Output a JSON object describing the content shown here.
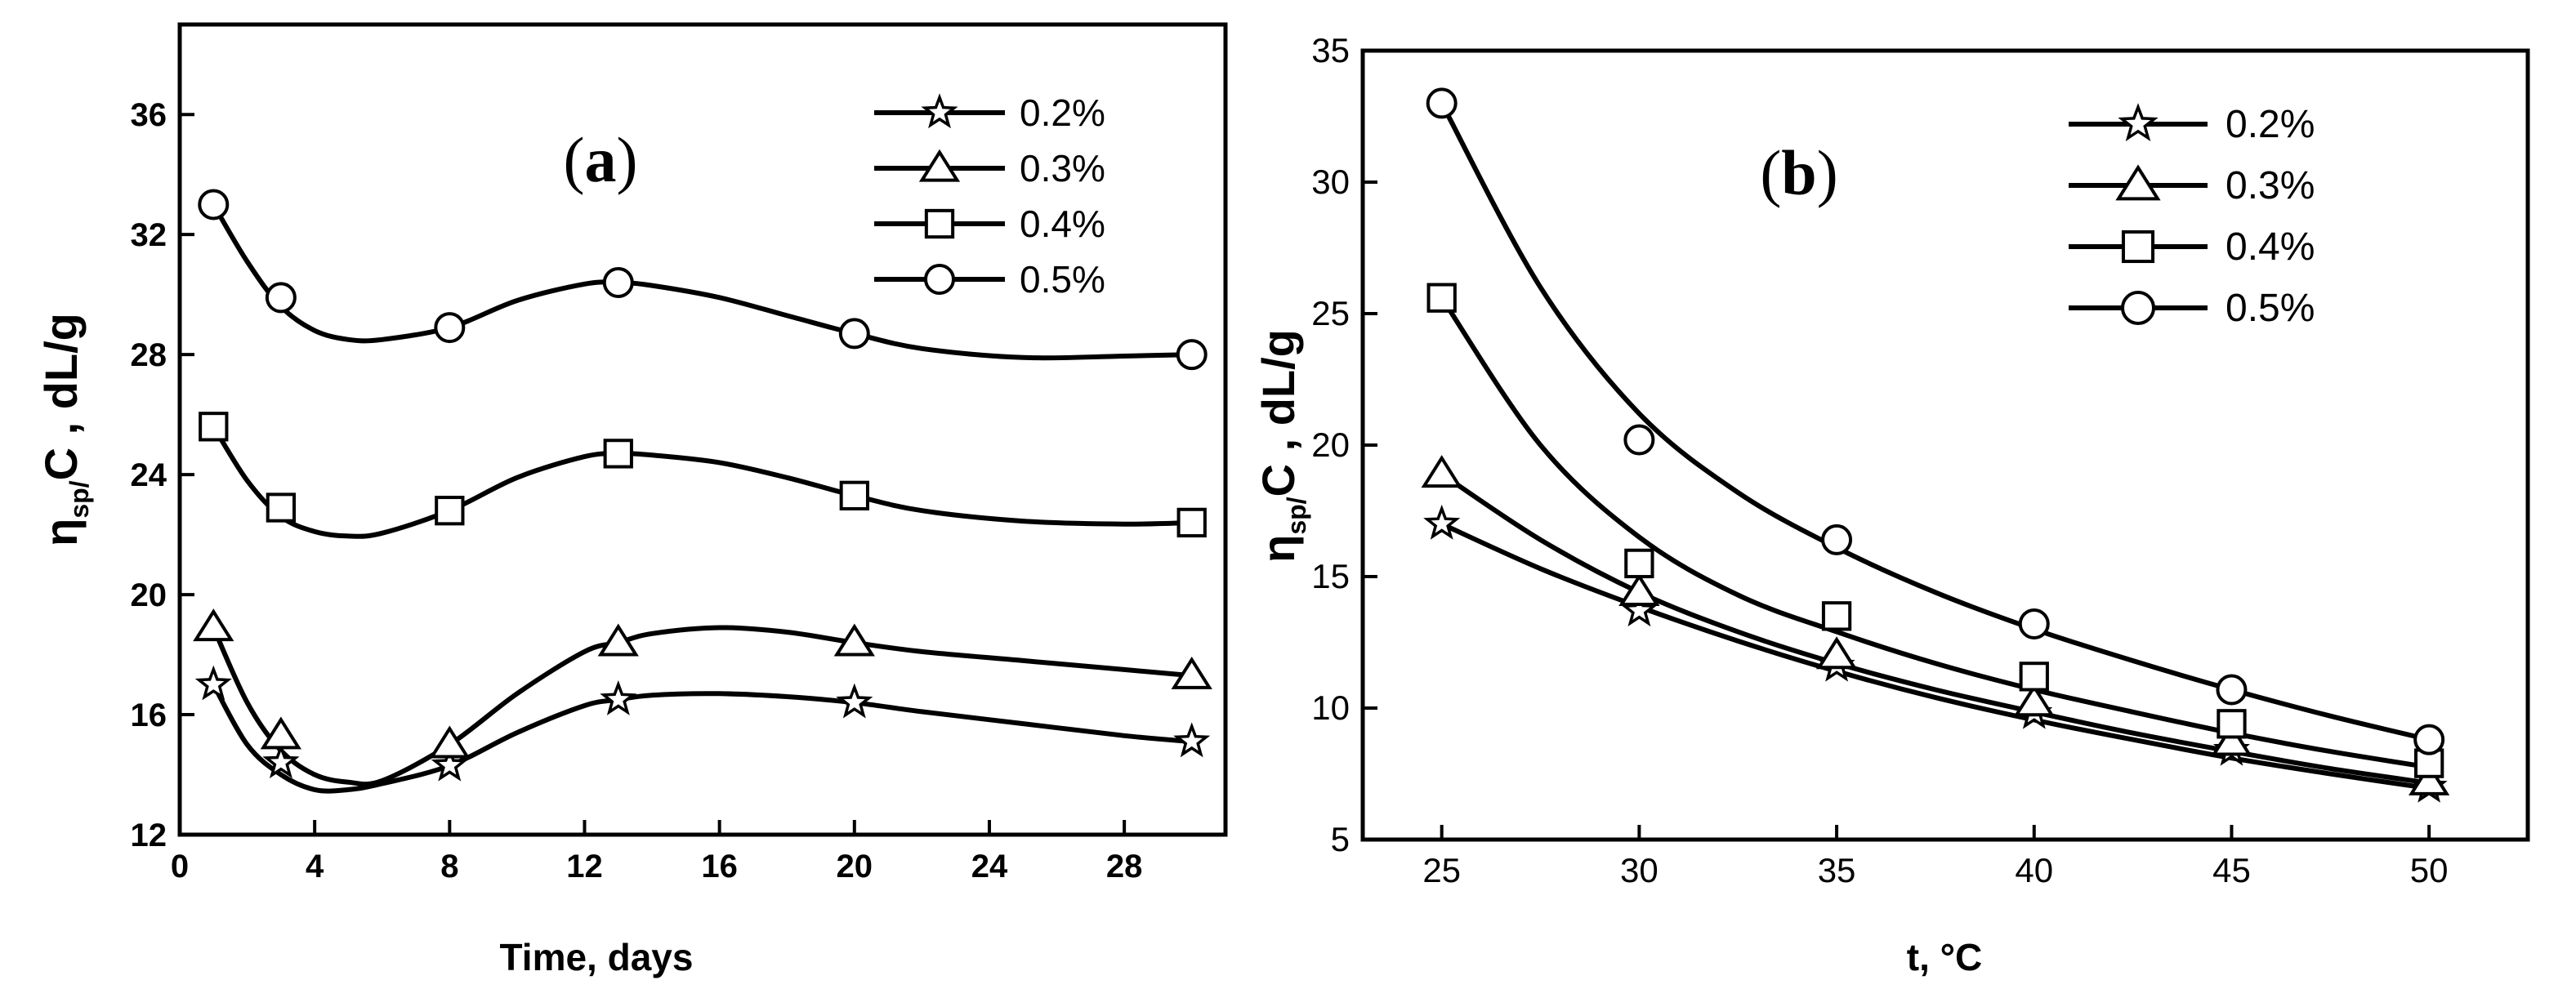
{
  "colors": {
    "ink": "#000000",
    "background": "#ffffff",
    "marker_fill": "#ffffff"
  },
  "chart_data": [
    {
      "id": "a",
      "type": "line",
      "panel_label": "a",
      "xlabel": "Time, days",
      "ylabel_main": "η",
      "ylabel_sub": "sp/",
      "ylabel_tail": "C , dL/g",
      "xlim": [
        0,
        31
      ],
      "ylim": [
        12,
        39
      ],
      "xticks": [
        0,
        4,
        8,
        12,
        16,
        20,
        24,
        28
      ],
      "yticks": [
        12,
        16,
        20,
        24,
        28,
        32,
        36
      ],
      "grid": false,
      "legend_position": "top-right",
      "x": [
        1,
        3,
        8,
        13,
        20,
        30
      ],
      "series": [
        {
          "name": "0.2%",
          "marker": "star",
          "values": [
            17.0,
            14.4,
            14.3,
            16.5,
            16.4,
            15.1
          ],
          "curve_x": [
            1,
            2,
            3,
            4,
            5,
            6,
            8,
            10,
            12,
            13,
            14,
            16,
            18,
            20,
            22,
            25,
            28,
            30
          ],
          "curve_y": [
            17.0,
            15.0,
            14.0,
            13.5,
            13.5,
            13.7,
            14.3,
            15.4,
            16.3,
            16.5,
            16.65,
            16.7,
            16.6,
            16.4,
            16.1,
            15.7,
            15.3,
            15.1
          ]
        },
        {
          "name": "0.3%",
          "marker": "triangle",
          "values": [
            18.9,
            15.3,
            15.0,
            18.4,
            18.4,
            17.3
          ],
          "curve_x": [
            1,
            2,
            3,
            4,
            5,
            6,
            8,
            10,
            12,
            13,
            14,
            16,
            18,
            20,
            22,
            25,
            28,
            30
          ],
          "curve_y": [
            18.9,
            16.4,
            14.8,
            14.0,
            13.75,
            13.8,
            15.0,
            16.7,
            18.1,
            18.4,
            18.7,
            18.9,
            18.75,
            18.4,
            18.1,
            17.8,
            17.5,
            17.3
          ]
        },
        {
          "name": "0.4%",
          "marker": "square",
          "values": [
            25.6,
            22.9,
            22.8,
            24.7,
            23.3,
            22.4
          ],
          "curve_x": [
            1,
            2,
            3,
            4,
            5,
            6,
            8,
            10,
            12,
            13,
            14,
            16,
            18,
            20,
            22,
            25,
            28,
            30
          ],
          "curve_y": [
            25.6,
            23.8,
            22.6,
            22.1,
            21.95,
            22.05,
            22.8,
            23.9,
            24.6,
            24.7,
            24.65,
            24.4,
            23.9,
            23.3,
            22.8,
            22.45,
            22.35,
            22.4
          ]
        },
        {
          "name": "0.5%",
          "marker": "circle",
          "values": [
            33.0,
            29.9,
            28.9,
            30.4,
            28.7,
            28.0
          ],
          "curve_x": [
            1,
            2,
            3,
            4,
            5,
            6,
            8,
            10,
            12,
            13,
            14,
            16,
            18,
            20,
            22,
            25,
            28,
            30
          ],
          "curve_y": [
            33.0,
            31.1,
            29.6,
            28.8,
            28.5,
            28.5,
            28.9,
            29.8,
            30.35,
            30.4,
            30.3,
            29.9,
            29.3,
            28.7,
            28.2,
            27.9,
            27.95,
            28.0
          ]
        }
      ]
    },
    {
      "id": "b",
      "type": "line",
      "panel_label": "b",
      "xlabel": "t, °C",
      "ylabel_main": "η",
      "ylabel_sub": "sp/",
      "ylabel_tail": "C , dL/g",
      "xlim": [
        23,
        52.5
      ],
      "ylim": [
        5,
        35
      ],
      "xticks": [
        25,
        30,
        35,
        40,
        45,
        50
      ],
      "yticks": [
        5,
        10,
        15,
        20,
        25,
        30,
        35
      ],
      "grid": false,
      "legend_position": "top-center",
      "x": [
        25,
        30,
        35,
        40,
        45,
        50
      ],
      "series": [
        {
          "name": "0.2%",
          "marker": "star",
          "values": [
            17.0,
            13.7,
            11.6,
            9.8,
            8.4,
            7.0
          ],
          "curve_x": [
            25,
            27.5,
            30,
            32.5,
            35,
            37.5,
            40,
            42.5,
            45,
            47.5,
            50
          ],
          "curve_y": [
            17.0,
            15.3,
            13.85,
            12.55,
            11.4,
            10.4,
            9.55,
            8.8,
            8.1,
            7.5,
            6.95
          ]
        },
        {
          "name": "0.3%",
          "marker": "triangle",
          "values": [
            18.9,
            14.4,
            12.0,
            10.2,
            8.7,
            7.2
          ],
          "curve_x": [
            25,
            27.5,
            30,
            32.5,
            35,
            37.5,
            40,
            42.5,
            45,
            47.5,
            50
          ],
          "curve_y": [
            18.9,
            16.4,
            14.4,
            12.9,
            11.7,
            10.7,
            9.85,
            9.05,
            8.35,
            7.7,
            7.15
          ]
        },
        {
          "name": "0.4%",
          "marker": "square",
          "values": [
            25.6,
            15.5,
            13.5,
            11.2,
            9.4,
            7.9
          ],
          "curve_x": [
            25,
            27.5,
            30,
            32.5,
            35,
            37.5,
            40,
            42.5,
            45,
            47.5,
            50
          ],
          "curve_y": [
            25.6,
            20.0,
            16.5,
            14.3,
            12.9,
            11.7,
            10.7,
            9.85,
            9.05,
            8.35,
            7.75
          ]
        },
        {
          "name": "0.5%",
          "marker": "circle",
          "values": [
            33.0,
            20.2,
            16.4,
            13.2,
            10.7,
            8.8
          ],
          "curve_x": [
            25,
            27.5,
            30,
            32.5,
            35,
            37.5,
            40,
            42.5,
            45,
            47.5,
            50
          ],
          "curve_y": [
            33.0,
            26.0,
            21.2,
            18.2,
            16.1,
            14.4,
            13.0,
            11.8,
            10.7,
            9.7,
            8.8
          ]
        }
      ]
    }
  ]
}
